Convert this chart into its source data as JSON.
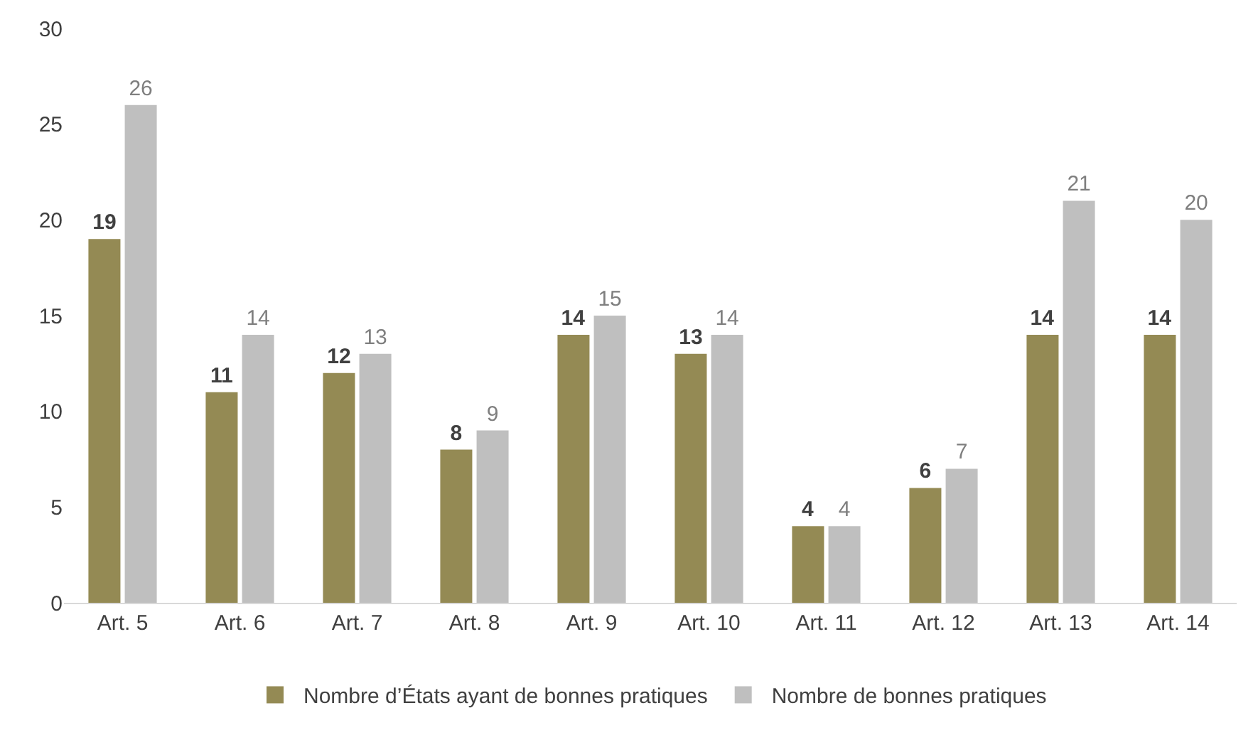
{
  "chart_data": {
    "type": "bar",
    "categories": [
      "Art. 5",
      "Art. 6",
      "Art. 7",
      "Art. 8",
      "Art. 9",
      "Art. 10",
      "Art. 11",
      "Art. 12",
      "Art. 13",
      "Art. 14"
    ],
    "series": [
      {
        "name": "Nombre d’États ayant de bonnes pratiques",
        "color": "#948a54",
        "values": [
          19,
          11,
          12,
          8,
          14,
          13,
          4,
          6,
          14,
          14
        ]
      },
      {
        "name": "Nombre de bonnes pratiques",
        "color": "#bfbfbf",
        "values": [
          26,
          14,
          13,
          9,
          15,
          14,
          4,
          7,
          21,
          20
        ]
      }
    ],
    "ylim": [
      0,
      30
    ],
    "yticks": [
      0,
      5,
      10,
      15,
      20,
      25,
      30
    ],
    "data_labels": true,
    "legend": "bottom"
  }
}
